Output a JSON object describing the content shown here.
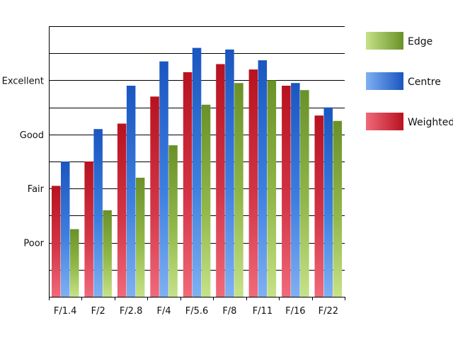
{
  "chart_data": {
    "type": "bar",
    "categories": [
      "F/1.4",
      "F/2",
      "F/2.8",
      "F/4",
      "F/5.6",
      "F/8",
      "F/11",
      "F/16",
      "F/22"
    ],
    "ylim": [
      0,
      5
    ],
    "yticks": [
      {
        "value": 1,
        "label": "Poor"
      },
      {
        "value": 2,
        "label": "Fair"
      },
      {
        "value": 3,
        "label": "Good"
      },
      {
        "value": 4,
        "label": "Excellent"
      }
    ],
    "grid": true,
    "legend_position": "right",
    "series": [
      {
        "name": "Weighted",
        "key": "weighted",
        "color": "#c0162a",
        "values": [
          2.05,
          2.5,
          3.2,
          3.7,
          4.15,
          4.3,
          4.2,
          3.9,
          3.35
        ]
      },
      {
        "name": "Centre",
        "key": "centre",
        "color": "#1e63c8",
        "values": [
          2.5,
          3.1,
          3.9,
          4.35,
          4.6,
          4.57,
          4.37,
          3.95,
          3.5
        ]
      },
      {
        "name": "Edge",
        "key": "edge",
        "color": "#6f9a2c",
        "values": [
          1.25,
          1.6,
          2.2,
          2.8,
          3.55,
          3.95,
          4.0,
          3.82,
          3.25
        ]
      }
    ],
    "legend_order": [
      "Edge",
      "Centre",
      "Weighted"
    ]
  }
}
